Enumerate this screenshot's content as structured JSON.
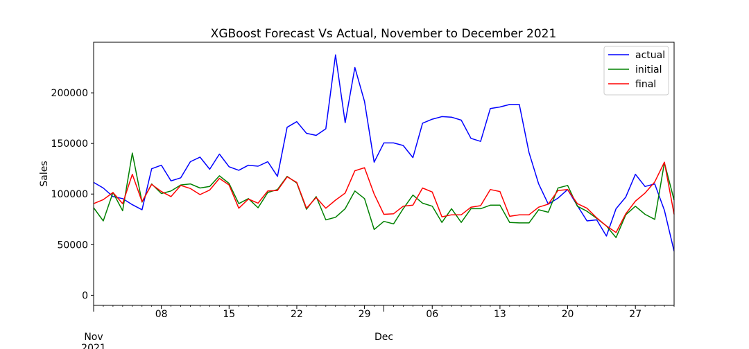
{
  "chart_data": {
    "type": "line",
    "title": "XGBoost Forecast Vs Actual, November to December 2021",
    "xlabel": "",
    "ylabel": "Sales",
    "x_start": "2021-11-01",
    "x_end": "2021-12-31",
    "xlim": [
      "2021-11-01",
      "2021-12-31"
    ],
    "ylim": [
      -10000,
      250000
    ],
    "y_ticks": [
      0,
      50000,
      100000,
      150000,
      200000
    ],
    "y_tick_labels": [
      "0",
      "50000",
      "100000",
      "150000",
      "200000"
    ],
    "x_ticks": [
      {
        "date": "2021-11-08",
        "label": "08"
      },
      {
        "date": "2021-11-15",
        "label": "15"
      },
      {
        "date": "2021-11-22",
        "label": "22"
      },
      {
        "date": "2021-11-29",
        "label": "29"
      },
      {
        "date": "2021-12-06",
        "label": "06"
      },
      {
        "date": "2021-12-13",
        "label": "13"
      },
      {
        "date": "2021-12-20",
        "label": "20"
      },
      {
        "date": "2021-12-27",
        "label": "27"
      }
    ],
    "x_major_ticks": [
      {
        "date": "2021-11-01",
        "label": "Nov\n2021"
      },
      {
        "date": "2021-12-01",
        "label": "Dec"
      }
    ],
    "grid": false,
    "legend_position": "upper right",
    "series": [
      {
        "name": "actual",
        "color": "#0000ff",
        "values": [
          111500,
          106000,
          97500,
          95500,
          89500,
          84500,
          125000,
          128500,
          113000,
          116000,
          132000,
          136500,
          124500,
          139500,
          127000,
          123500,
          128500,
          127500,
          132000,
          117500,
          166000,
          171500,
          160000,
          158000,
          164500,
          237500,
          170500,
          225000,
          191500,
          131500,
          150500,
          150500,
          148000,
          136000,
          170000,
          174000,
          176500,
          176000,
          173000,
          155000,
          152000,
          184500,
          186000,
          188500,
          188500,
          141000,
          110000,
          90000,
          96000,
          104500,
          88500,
          73500,
          74500,
          58500,
          85500,
          97000,
          119500,
          107500,
          110000,
          84000,
          43500
        ]
      },
      {
        "name": "initial",
        "color": "#008000",
        "values": [
          86500,
          73500,
          101500,
          83500,
          140500,
          92000,
          110000,
          100500,
          103000,
          109000,
          110000,
          106000,
          107500,
          118000,
          110500,
          90500,
          95500,
          86500,
          101500,
          104500,
          117500,
          111000,
          85000,
          97500,
          74500,
          77000,
          85500,
          103000,
          95500,
          65000,
          73000,
          70500,
          85500,
          99000,
          91000,
          88000,
          72000,
          85500,
          72000,
          85500,
          85500,
          89000,
          89000,
          72000,
          71500,
          71500,
          84500,
          82000,
          106000,
          108500,
          88000,
          83000,
          76000,
          68500,
          57000,
          79500,
          88000,
          80000,
          75000,
          131000,
          94000
        ]
      },
      {
        "name": "final",
        "color": "#ff0000",
        "values": [
          90500,
          94500,
          101500,
          90500,
          119500,
          92500,
          109500,
          102500,
          97500,
          108500,
          105500,
          99500,
          104000,
          115500,
          109000,
          86000,
          95000,
          91000,
          103000,
          103500,
          117000,
          111500,
          86000,
          96500,
          86000,
          94000,
          101000,
          123000,
          126000,
          100000,
          80000,
          80500,
          88000,
          89000,
          106000,
          102000,
          77500,
          79500,
          79500,
          87000,
          88500,
          104500,
          102500,
          78000,
          79500,
          79500,
          87000,
          90000,
          103500,
          104500,
          90500,
          86000,
          76500,
          68500,
          62000,
          80500,
          93000,
          101000,
          112000,
          131500,
          80000
        ]
      }
    ]
  }
}
